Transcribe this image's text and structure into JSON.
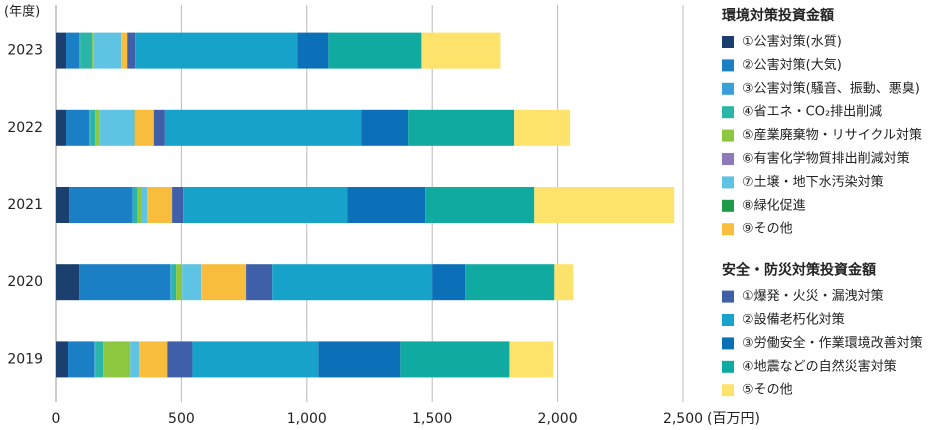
{
  "chart_data": {
    "type": "stacked-bar-horizontal",
    "y_axis_label": "(年度)",
    "x_axis_label": "(百万円)",
    "categories": [
      "2023",
      "2022",
      "2021",
      "2020",
      "2019"
    ],
    "xlim": [
      0,
      2500
    ],
    "xticks": [
      0,
      {
        "value": 500,
        "label": "500"
      },
      {
        "value": 1000,
        "label": "1,000"
      },
      {
        "value": 1500,
        "label": "1,500"
      },
      {
        "value": 2000,
        "label": "2,000"
      },
      {
        "value": 2500,
        "label": "2,500"
      }
    ],
    "grid": true,
    "series_groups": [
      {
        "name": "環境対策投資金額",
        "series": [
          {
            "name": "①公害対策(水質)",
            "color": "#1b3f6e",
            "values": [
              40,
              40,
              52,
              92,
              48
            ]
          },
          {
            "name": "②公害対策(大気)",
            "color": "#1a7fc4",
            "values": [
              52,
              92,
              251,
              363,
              104
            ]
          },
          {
            "name": "③公害対策(騒音、振動、悪臭)",
            "color": "#3aa0d8",
            "values": [
              4,
              4,
              8,
              4,
              4
            ]
          },
          {
            "name": "④省エネ・CO₂排出削減",
            "color": "#2bb5a8",
            "values": [
              48,
              20,
              12,
              20,
              32
            ]
          },
          {
            "name": "⑤産業廃棄物・リサイクル対策",
            "color": "#8dc63f",
            "values": [
              4,
              16,
              16,
              24,
              108
            ]
          },
          {
            "name": "⑥有害化学物質排出削減対策",
            "color": "#8c7ab8",
            "values": [
              0,
              0,
              0,
              0,
              0
            ]
          },
          {
            "name": "⑦土壌・地下水汚染対策",
            "color": "#5fc3e4",
            "values": [
              112,
              140,
              24,
              76,
              36
            ]
          },
          {
            "name": "⑧緑化促進",
            "color": "#1d9a4a",
            "values": [
              0,
              2,
              0,
              0,
              0
            ]
          },
          {
            "name": "⑨その他",
            "color": "#f9bd3d",
            "values": [
              24,
              76,
              100,
              179,
              112
            ]
          }
        ]
      },
      {
        "name": "安全・防災対策投資金額",
        "series": [
          {
            "name": "①爆発・火災・漏洩対策",
            "color": "#3f5fa8",
            "values": [
              32,
              44,
              44,
              104,
              100
            ]
          },
          {
            "name": "②設備老朽化対策",
            "color": "#16a2c9",
            "values": [
              646,
              783,
              654,
              638,
              502
            ]
          },
          {
            "name": "③労働安全・作業環境改善対策",
            "color": "#0b70b8",
            "values": [
              124,
              187,
              311,
              132,
              327
            ]
          },
          {
            "name": "④地震などの自然災害対策",
            "color": "#11aaa0",
            "values": [
              371,
              423,
              435,
              355,
              435
            ]
          },
          {
            "name": "⑤その他",
            "color": "#fde36b",
            "values": [
              315,
              223,
              558,
              76,
              175
            ]
          }
        ]
      }
    ]
  }
}
